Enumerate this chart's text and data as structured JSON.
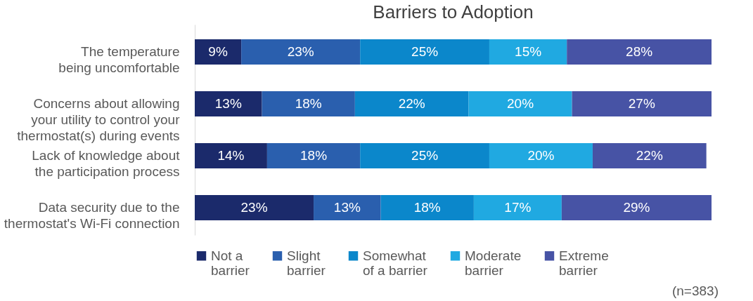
{
  "chart_data": {
    "type": "bar",
    "orientation": "horizontal",
    "stacked": true,
    "tick_labels": "y",
    "title": "Barriers to Adoption",
    "categories": [
      "The temperature\nbeing uncomfortable",
      "Concerns about allowing\nyour utility to control your\nthermostat(s) during events",
      "Lack of knowledge about\nthe participation process",
      "Data security due to the\nthermostat's Wi-Fi connection"
    ],
    "series": [
      {
        "name": "Not a\nbarrier",
        "color": "#1b2a6b",
        "values": [
          9,
          13,
          14,
          23
        ],
        "value_labels": [
          "9%",
          "13%",
          "14%",
          "23%"
        ]
      },
      {
        "name": "Slight\nbarrier",
        "color": "#2a5fae",
        "values": [
          23,
          18,
          18,
          13
        ],
        "value_labels": [
          "23%",
          "18%",
          "18%",
          "13%"
        ]
      },
      {
        "name": "Somewhat\nof a barrier",
        "color": "#0b87cb",
        "values": [
          25,
          22,
          25,
          18
        ],
        "value_labels": [
          "25%",
          "22%",
          "25%",
          "18%"
        ]
      },
      {
        "name": "Moderate\nbarrier",
        "color": "#20a9e1",
        "values": [
          15,
          20,
          20,
          17
        ],
        "value_labels": [
          "15%",
          "20%",
          "20%",
          "17%"
        ]
      },
      {
        "name": "Extreme\nbarrier",
        "color": "#4753a5",
        "values": [
          28,
          27,
          22,
          29
        ],
        "value_labels": [
          "28%",
          "27%",
          "22%",
          "29%"
        ]
      }
    ],
    "legend": "bottom",
    "annotations": [
      "(n=383)"
    ]
  }
}
